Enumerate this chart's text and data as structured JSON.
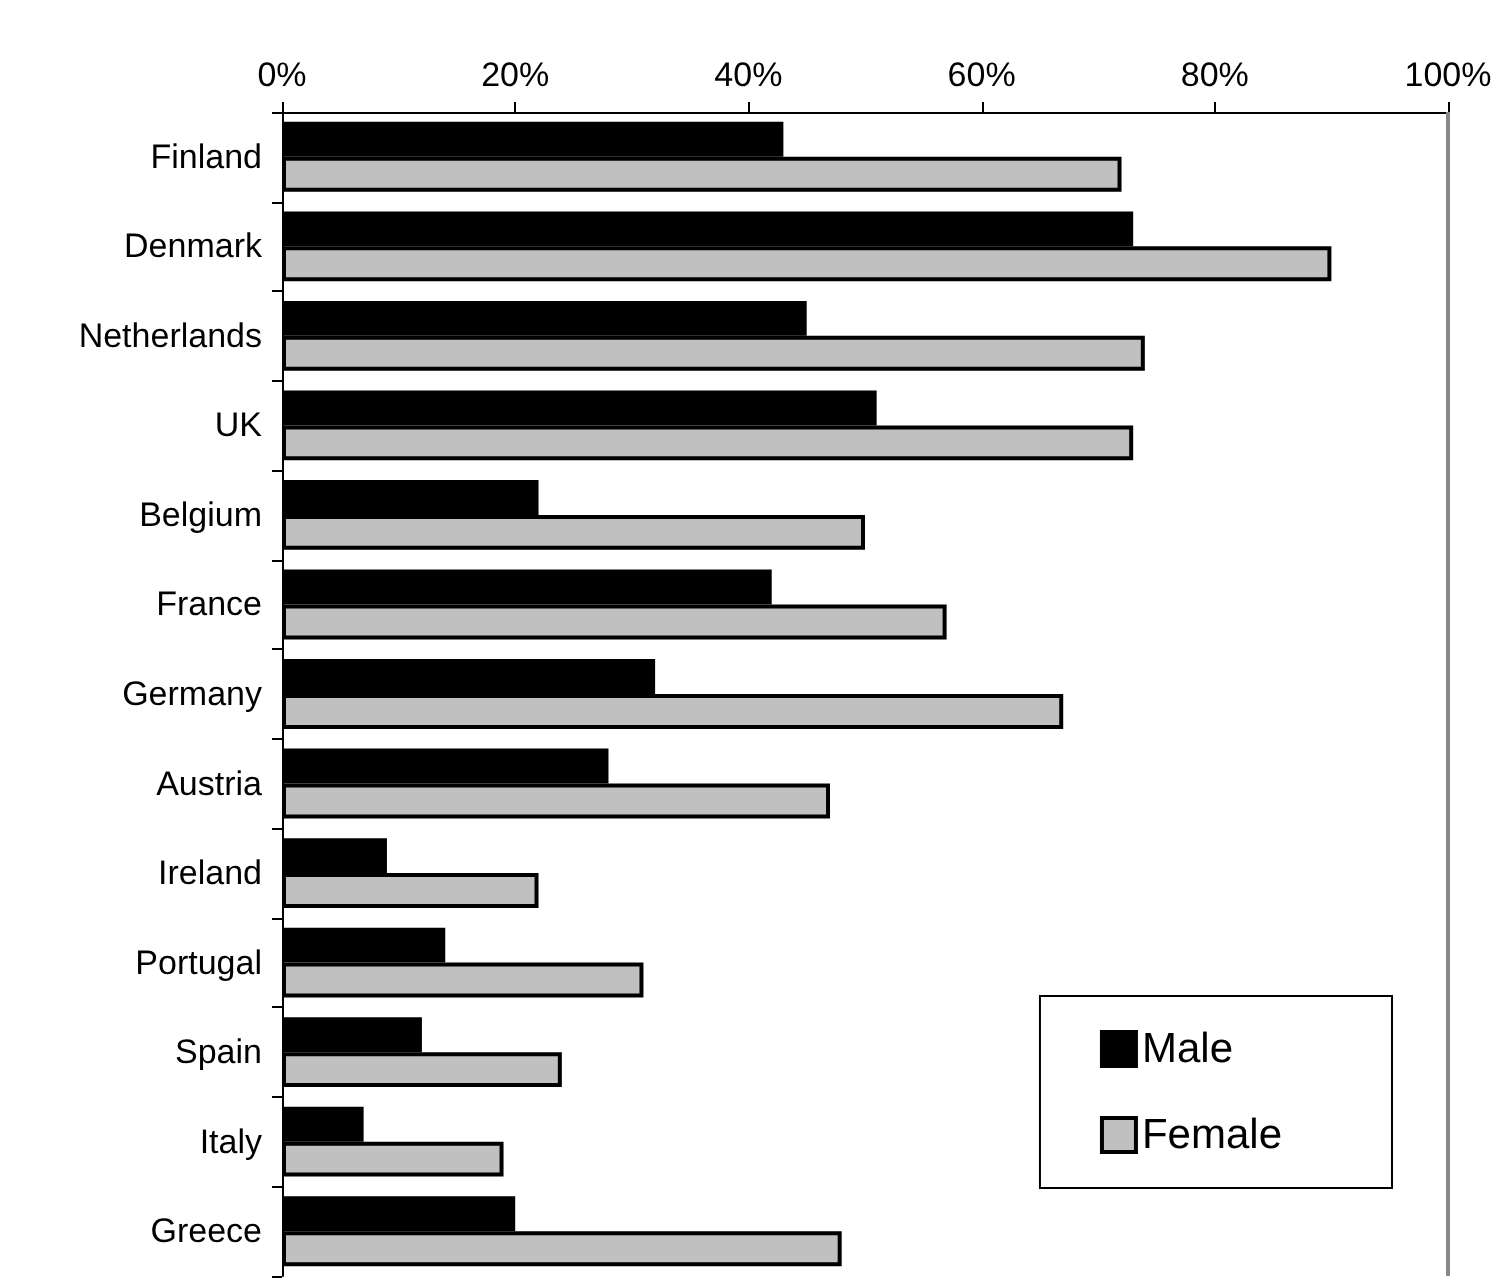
{
  "chart_data": {
    "type": "bar",
    "orientation": "horizontal",
    "categories": [
      "Finland",
      "Denmark",
      "Netherlands",
      "UK",
      "Belgium",
      "France",
      "Germany",
      "Austria",
      "Ireland",
      "Portugal",
      "Spain",
      "Italy",
      "Greece"
    ],
    "series": [
      {
        "name": "Male",
        "color": "#000000",
        "values": [
          43,
          73,
          45,
          51,
          22,
          42,
          32,
          28,
          9,
          14,
          12,
          7,
          20
        ]
      },
      {
        "name": "Female",
        "color": "#c0c0c0",
        "values": [
          72,
          90,
          74,
          73,
          50,
          57,
          67,
          47,
          22,
          31,
          24,
          19,
          48
        ]
      }
    ],
    "xlim": [
      0,
      100
    ],
    "xticks": [
      {
        "value": 0,
        "label": "0%"
      },
      {
        "value": 20,
        "label": "20%"
      },
      {
        "value": 40,
        "label": "40%"
      },
      {
        "value": 60,
        "label": "60%"
      },
      {
        "value": 80,
        "label": "80%"
      },
      {
        "value": 100,
        "label": "100%"
      }
    ],
    "grid": false,
    "legend": "bottom right"
  }
}
